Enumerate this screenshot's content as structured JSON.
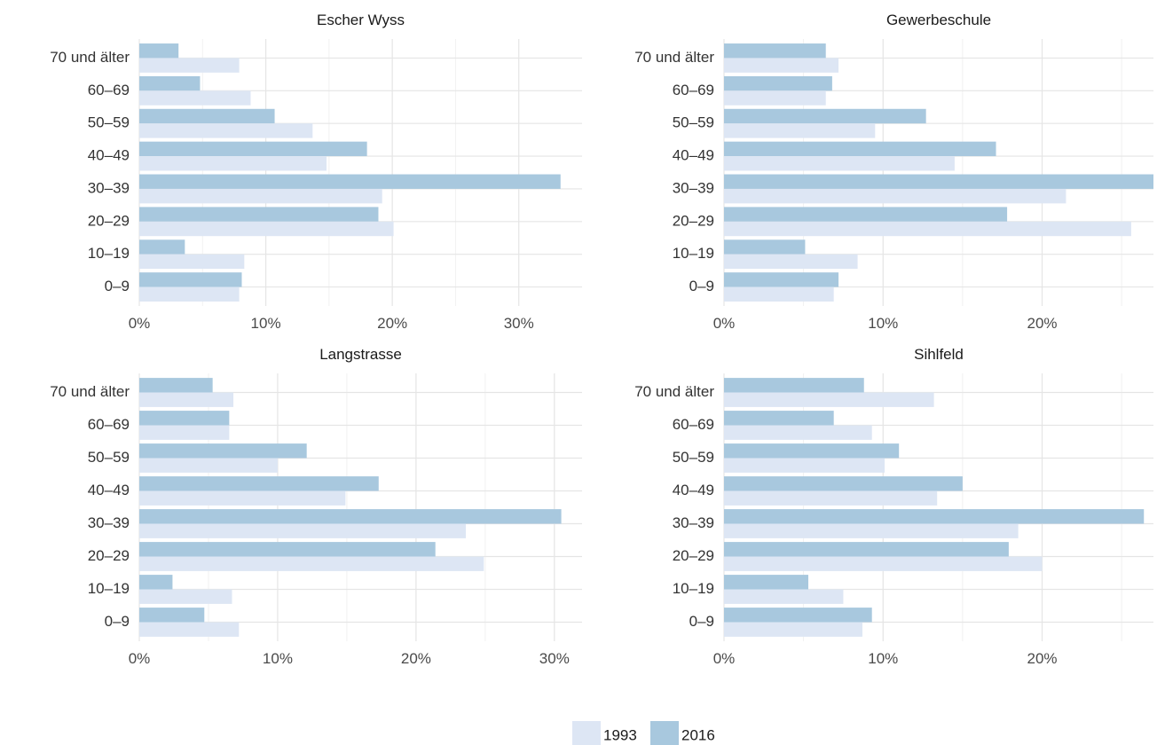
{
  "chart_data": [
    {
      "type": "bar",
      "orientation": "horizontal",
      "title": "Escher Wyss",
      "categories": [
        "70 und älter",
        "60–69",
        "50–59",
        "40–49",
        "30–39",
        "20–29",
        "10–19",
        "0–9"
      ],
      "series": [
        {
          "name": "2016",
          "values": [
            3.1,
            4.8,
            10.7,
            18.0,
            33.3,
            18.9,
            3.6,
            8.1
          ]
        },
        {
          "name": "1993",
          "values": [
            7.9,
            8.8,
            13.7,
            14.8,
            19.2,
            20.1,
            8.3,
            7.9
          ]
        }
      ],
      "xlim": [
        0,
        35
      ],
      "xticks": [
        0,
        10,
        20,
        30
      ],
      "xtick_labels": [
        "0%",
        "10%",
        "20%",
        "30%"
      ]
    },
    {
      "type": "bar",
      "orientation": "horizontal",
      "title": "Gewerbeschule",
      "categories": [
        "70 und älter",
        "60–69",
        "50–59",
        "40–49",
        "30–39",
        "20–29",
        "10–19",
        "0–9"
      ],
      "series": [
        {
          "name": "2016",
          "values": [
            6.4,
            6.8,
            12.7,
            17.1,
            27.0,
            17.8,
            5.1,
            7.2
          ]
        },
        {
          "name": "1993",
          "values": [
            7.2,
            6.4,
            9.5,
            14.5,
            21.5,
            25.6,
            8.4,
            6.9
          ]
        }
      ],
      "xlim": [
        0,
        27
      ],
      "xticks": [
        0,
        10,
        20
      ],
      "xtick_labels": [
        "0%",
        "10%",
        "20%"
      ]
    },
    {
      "type": "bar",
      "orientation": "horizontal",
      "title": "Langstrasse",
      "categories": [
        "70 und älter",
        "60–69",
        "50–59",
        "40–49",
        "30–39",
        "20–29",
        "10–19",
        "0–9"
      ],
      "series": [
        {
          "name": "2016",
          "values": [
            5.3,
            6.5,
            12.1,
            17.3,
            30.5,
            21.4,
            2.4,
            4.7
          ]
        },
        {
          "name": "1993",
          "values": [
            6.8,
            6.5,
            10.0,
            14.9,
            23.6,
            24.9,
            6.7,
            7.2
          ]
        }
      ],
      "xlim": [
        0,
        32
      ],
      "xticks": [
        0,
        10,
        20,
        30
      ],
      "xtick_labels": [
        "0%",
        "10%",
        "20%",
        "30%"
      ]
    },
    {
      "type": "bar",
      "orientation": "horizontal",
      "title": "Sihlfeld",
      "categories": [
        "70 und älter",
        "60–69",
        "50–59",
        "40–49",
        "30–39",
        "20–29",
        "10–19",
        "0–9"
      ],
      "series": [
        {
          "name": "2016",
          "values": [
            8.8,
            6.9,
            11.0,
            15.0,
            26.4,
            17.9,
            5.3,
            9.3
          ]
        },
        {
          "name": "1993",
          "values": [
            13.2,
            9.3,
            10.1,
            13.4,
            18.5,
            20.0,
            7.5,
            8.7
          ]
        }
      ],
      "xlim": [
        0,
        27
      ],
      "xticks": [
        0,
        10,
        20
      ],
      "xtick_labels": [
        "0%",
        "10%",
        "20%"
      ]
    }
  ],
  "legend": {
    "position": "bottom",
    "items": [
      {
        "label": "1993",
        "color": "#dde6f4"
      },
      {
        "label": "2016",
        "color": "#a8c8de"
      }
    ]
  },
  "colors": {
    "series_2016": "#a8c8de",
    "series_1993": "#dde6f4"
  },
  "grid": true
}
